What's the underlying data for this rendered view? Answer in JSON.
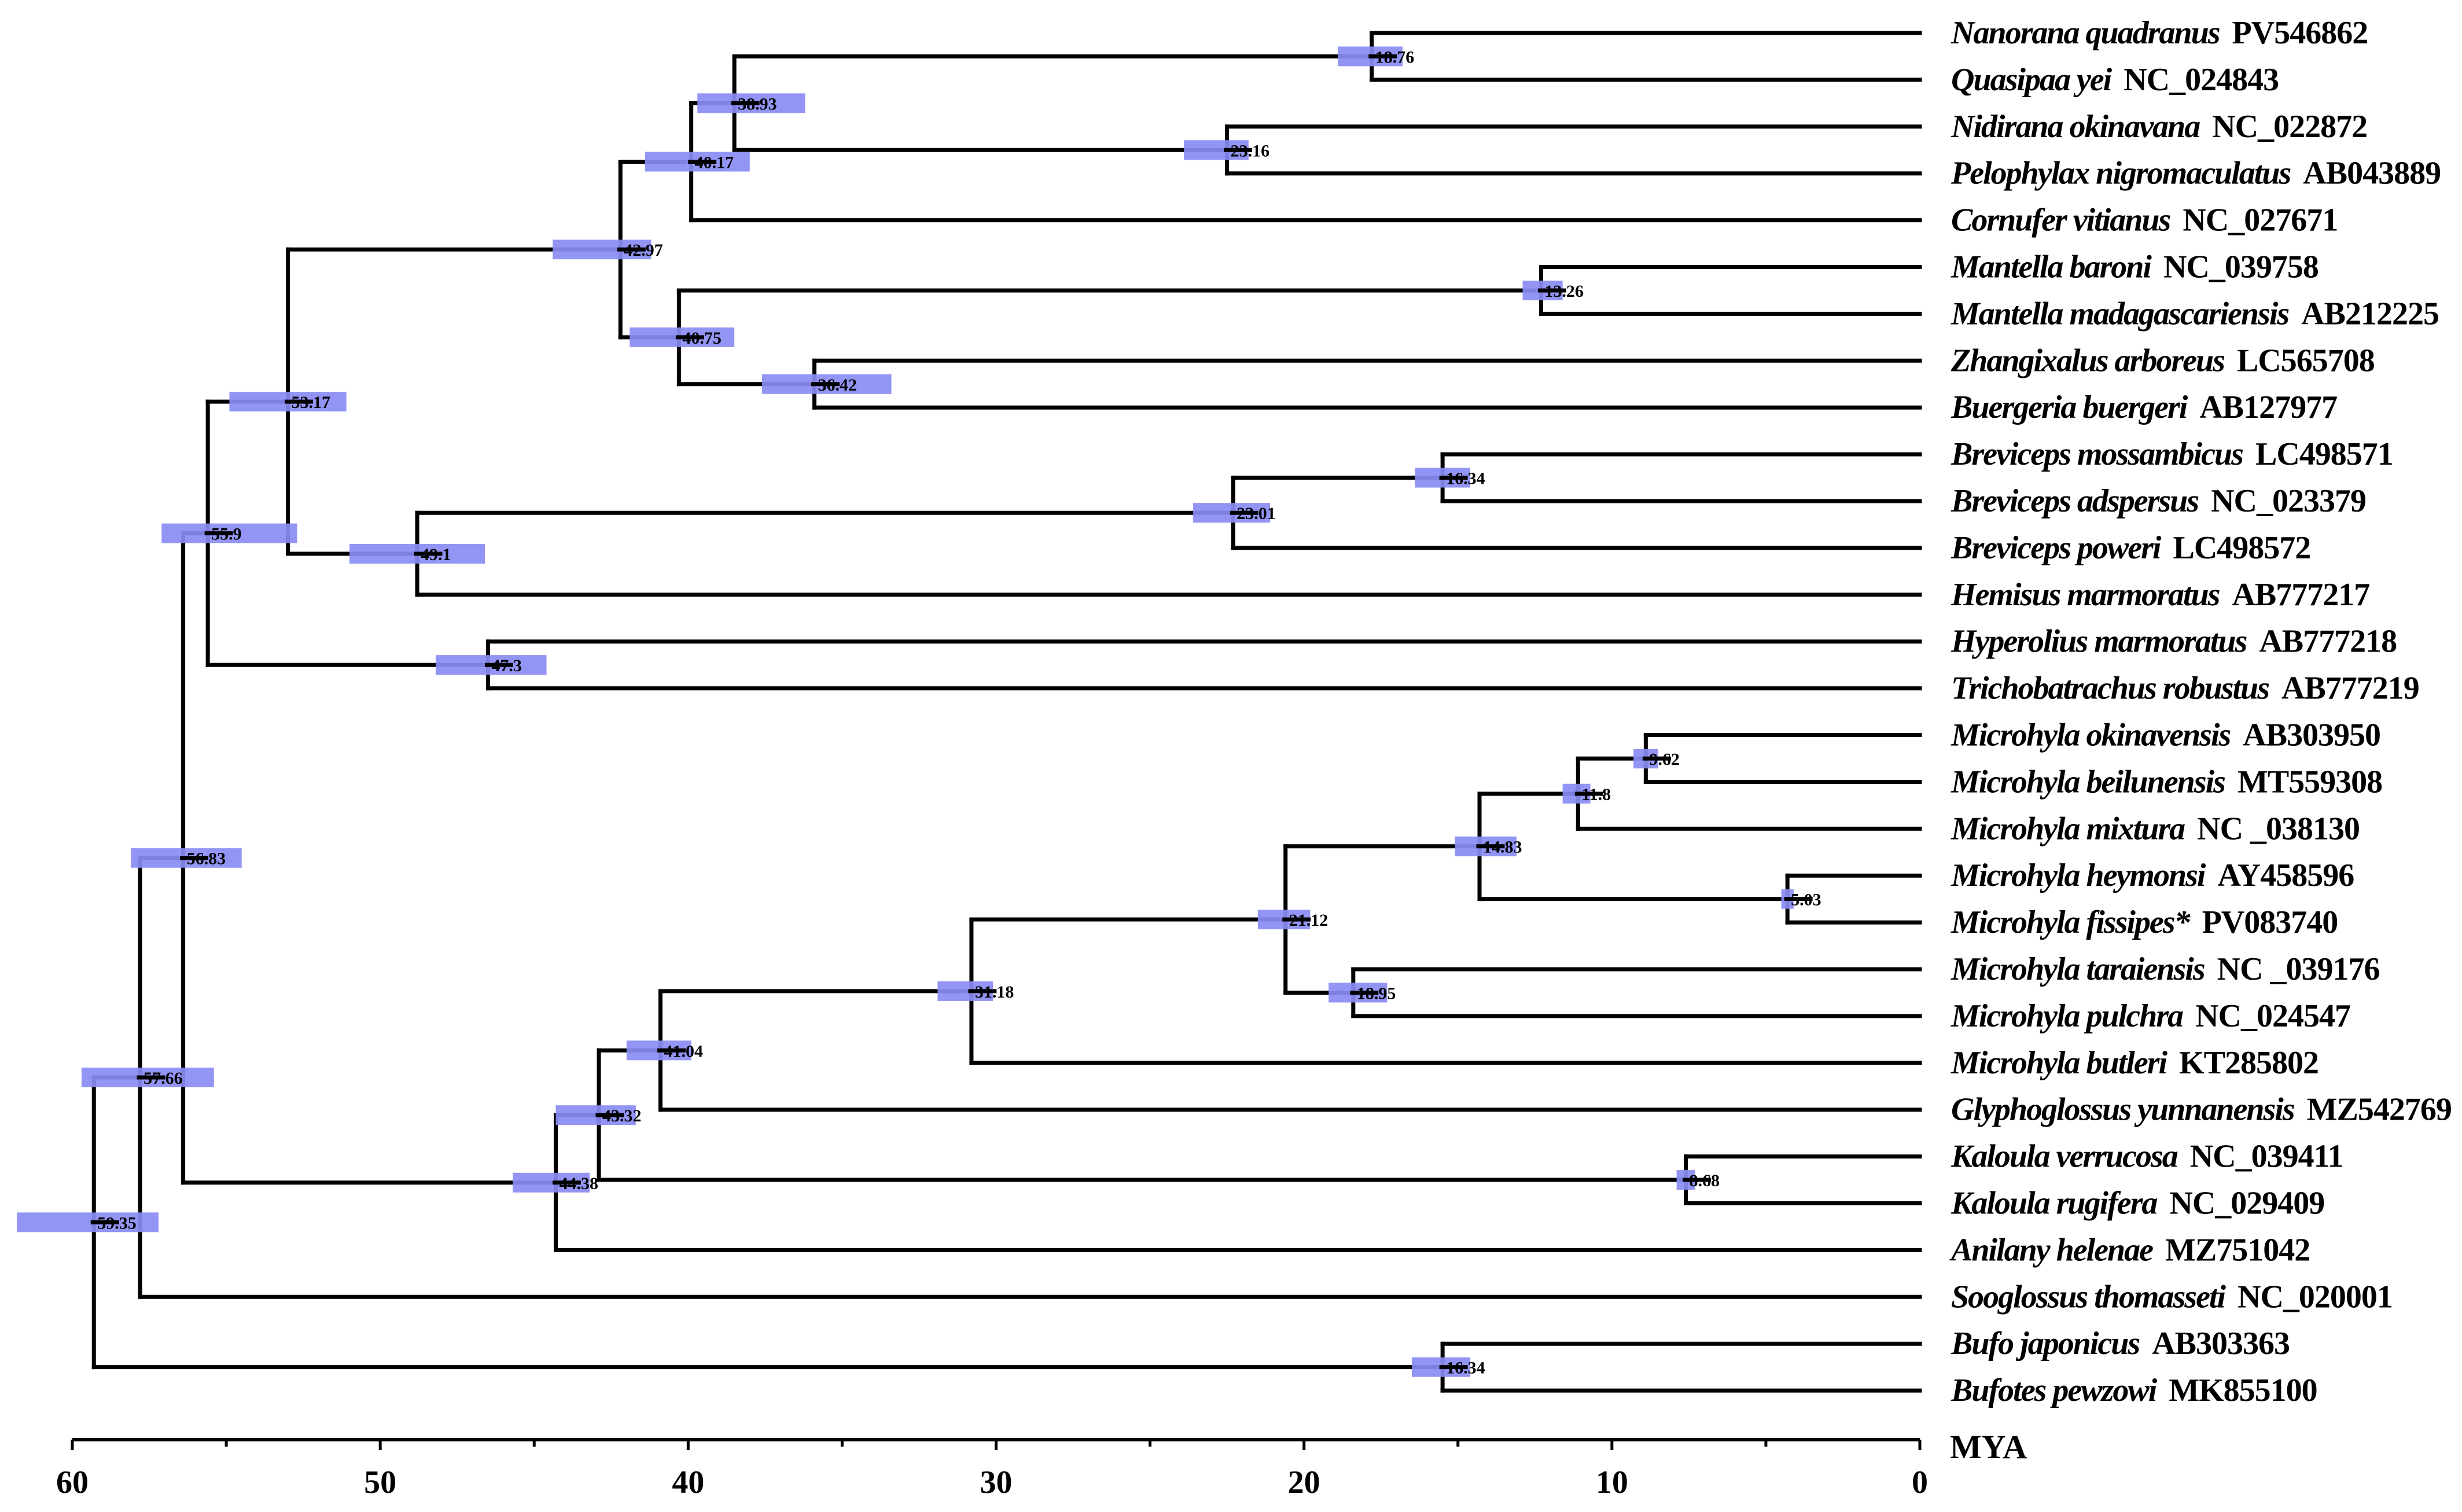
{
  "figure": {
    "axis_unit": "MYA",
    "axis_ticks": [
      "60",
      "50",
      "40",
      "30",
      "20",
      "10",
      "0"
    ],
    "colors": {
      "branch": "#000000",
      "hpd_bar": "#8a8cf4"
    }
  },
  "tips": [
    {
      "id": "t1",
      "species": "Nanorana quadranus",
      "accession": "PV546862"
    },
    {
      "id": "t2",
      "species": "Quasipaa yei",
      "accession": "NC_024843"
    },
    {
      "id": "t3",
      "species": "Nidirana okinavana",
      "accession": "NC_022872"
    },
    {
      "id": "t4",
      "species": "Pelophylax nigromaculatus",
      "accession": "AB043889"
    },
    {
      "id": "t5",
      "species": "Cornufer vitianus",
      "accession": "NC_027671"
    },
    {
      "id": "t6",
      "species": "Mantella baroni",
      "accession": "NC_039758"
    },
    {
      "id": "t7",
      "species": "Mantella madagascariensis",
      "accession": "AB212225"
    },
    {
      "id": "t8",
      "species": "Zhangixalus arboreus",
      "accession": "LC565708"
    },
    {
      "id": "t9",
      "species": "Buergeria buergeri",
      "accession": "AB127977"
    },
    {
      "id": "t10",
      "species": "Breviceps mossambicus",
      "accession": "LC498571"
    },
    {
      "id": "t11",
      "species": "Breviceps adspersus",
      "accession": "NC_023379"
    },
    {
      "id": "t12",
      "species": "Breviceps poweri",
      "accession": "LC498572"
    },
    {
      "id": "t13",
      "species": "Hemisus marmoratus",
      "accession": "AB777217"
    },
    {
      "id": "t14",
      "species": "Hyperolius marmoratus",
      "accession": "AB777218"
    },
    {
      "id": "t15",
      "species": "Trichobatrachus robustus",
      "accession": "AB777219"
    },
    {
      "id": "t16",
      "species": "Microhyla okinavensis",
      "accession": "AB303950"
    },
    {
      "id": "t17",
      "species": "Microhyla beilunensis",
      "accession": "MT559308"
    },
    {
      "id": "t18",
      "species": "Microhyla mixtura",
      "accession": "NC _038130"
    },
    {
      "id": "t19",
      "species": "Microhyla heymonsi",
      "accession": "AY458596"
    },
    {
      "id": "t20",
      "species": "Microhyla fissipes*",
      "accession": "PV083740"
    },
    {
      "id": "t21",
      "species": "Microhyla taraiensis",
      "accession": "NC _039176"
    },
    {
      "id": "t22",
      "species": "Microhyla pulchra",
      "accession": "NC_024547"
    },
    {
      "id": "t23",
      "species": "Microhyla butleri",
      "accession": "KT285802"
    },
    {
      "id": "t24",
      "species": "Glyphoglossus yunnanensis",
      "accession": "MZ542769"
    },
    {
      "id": "t25",
      "species": "Kaloula verrucosa",
      "accession": "NC_039411"
    },
    {
      "id": "t26",
      "species": "Kaloula rugifera",
      "accession": "NC_029409"
    },
    {
      "id": "t27",
      "species": "Anilany helenae",
      "accession": "MZ751042"
    },
    {
      "id": "t28",
      "species": "Sooglossus thomasseti",
      "accession": "NC_020001"
    },
    {
      "id": "t29",
      "species": "Bufo japonicus",
      "accession": "AB303363"
    },
    {
      "id": "t30",
      "species": "Bufotes pewzowi",
      "accession": "MK855100"
    }
  ],
  "nodes": [
    {
      "id": "n1",
      "label": "18.76",
      "age": 17.8,
      "hpd": [
        18.9,
        16.8
      ],
      "children": [
        "t1",
        "t2"
      ]
    },
    {
      "id": "n2",
      "label": "23.16",
      "age": 22.5,
      "hpd": [
        23.9,
        21.8
      ],
      "children": [
        "t3",
        "t4"
      ]
    },
    {
      "id": "n3",
      "label": "38.93",
      "age": 38.5,
      "hpd": [
        39.7,
        36.2
      ],
      "children": [
        "n1",
        "n2"
      ]
    },
    {
      "id": "n4",
      "label": "40.17",
      "age": 39.9,
      "hpd": [
        41.4,
        38.0
      ],
      "children": [
        "n3",
        "t5"
      ]
    },
    {
      "id": "n5",
      "label": "13.26",
      "age": 12.3,
      "hpd": [
        12.9,
        11.6
      ],
      "children": [
        "t6",
        "t7"
      ]
    },
    {
      "id": "n6",
      "label": "36.42",
      "age": 35.9,
      "hpd": [
        37.6,
        33.4
      ],
      "children": [
        "t8",
        "t9"
      ]
    },
    {
      "id": "n7",
      "label": "40.75",
      "age": 40.3,
      "hpd": [
        41.9,
        38.5
      ],
      "children": [
        "n5",
        "n6"
      ]
    },
    {
      "id": "n8",
      "label": "42.97",
      "age": 42.2,
      "hpd": [
        44.4,
        41.2
      ],
      "children": [
        "n4",
        "n7"
      ]
    },
    {
      "id": "n9",
      "label": "16.34",
      "age": 15.5,
      "hpd": [
        16.4,
        14.6
      ],
      "children": [
        "t10",
        "t11"
      ]
    },
    {
      "id": "n10",
      "label": "23.01",
      "age": 22.3,
      "hpd": [
        23.6,
        21.1
      ],
      "children": [
        "n9",
        "t12"
      ]
    },
    {
      "id": "n11",
      "label": "49.1",
      "age": 48.8,
      "hpd": [
        51.0,
        46.6
      ],
      "children": [
        "n10",
        "t13"
      ]
    },
    {
      "id": "n12",
      "label": "53.17",
      "age": 53.0,
      "hpd": [
        54.9,
        51.1
      ],
      "children": [
        "n8",
        "n11"
      ]
    },
    {
      "id": "n13",
      "label": "47.3",
      "age": 46.5,
      "hpd": [
        48.2,
        44.6
      ],
      "children": [
        "t14",
        "t15"
      ]
    },
    {
      "id": "n14",
      "label": "55.9",
      "age": 55.6,
      "hpd": [
        57.1,
        52.7
      ],
      "children": [
        "n12",
        "n13"
      ]
    },
    {
      "id": "n15",
      "label": "9.62",
      "age": 8.9,
      "hpd": [
        9.3,
        8.5
      ],
      "children": [
        "t16",
        "t17"
      ]
    },
    {
      "id": "n16",
      "label": "11.8",
      "age": 11.1,
      "hpd": [
        11.6,
        10.7
      ],
      "children": [
        "n15",
        "t18"
      ]
    },
    {
      "id": "n17",
      "label": "5.03",
      "age": 4.3,
      "hpd": [
        4.5,
        4.1
      ],
      "children": [
        "t19",
        "t20"
      ]
    },
    {
      "id": "n18",
      "label": "14.83",
      "age": 14.3,
      "hpd": [
        15.1,
        13.1
      ],
      "children": [
        "n16",
        "n17"
      ]
    },
    {
      "id": "n19",
      "label": "18.95",
      "age": 18.4,
      "hpd": [
        19.2,
        17.3
      ],
      "children": [
        "t21",
        "t22"
      ]
    },
    {
      "id": "n20",
      "label": "21.12",
      "age": 20.6,
      "hpd": [
        21.5,
        19.8
      ],
      "children": [
        "n18",
        "n19"
      ]
    },
    {
      "id": "n21",
      "label": "31.18",
      "age": 30.8,
      "hpd": [
        31.9,
        30.1
      ],
      "children": [
        "n20",
        "t23"
      ]
    },
    {
      "id": "n22",
      "label": "41.04",
      "age": 40.9,
      "hpd": [
        42.0,
        39.9
      ],
      "children": [
        "n21",
        "t24"
      ]
    },
    {
      "id": "n23",
      "label": "8.68",
      "age": 7.6,
      "hpd": [
        7.9,
        7.3
      ],
      "children": [
        "t25",
        "t26"
      ]
    },
    {
      "id": "n24",
      "label": "43.32",
      "age": 42.9,
      "hpd": [
        44.3,
        41.7
      ],
      "children": [
        "n22",
        "n23"
      ]
    },
    {
      "id": "n25",
      "label": "44.38",
      "age": 44.3,
      "hpd": [
        45.7,
        43.2
      ],
      "children": [
        "n24",
        "t27"
      ]
    },
    {
      "id": "n26",
      "label": "56.83",
      "age": 56.4,
      "hpd": [
        58.1,
        54.5
      ],
      "children": [
        "n14",
        "n25"
      ]
    },
    {
      "id": "n27",
      "label": "57.66",
      "age": 57.8,
      "hpd": [
        59.7,
        55.4
      ],
      "children": [
        "n26",
        "t28"
      ]
    },
    {
      "id": "n28",
      "label": "16.34",
      "age": 15.5,
      "hpd": [
        16.5,
        14.6
      ],
      "children": [
        "t29",
        "t30"
      ]
    },
    {
      "id": "n29",
      "label": "59.35",
      "age": 59.3,
      "hpd": [
        61.8,
        57.2
      ],
      "children": [
        "n27",
        "n28"
      ]
    }
  ]
}
